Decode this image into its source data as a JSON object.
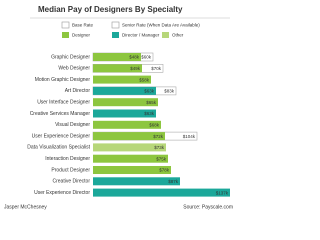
{
  "chart_data": {
    "type": "bar",
    "orientation": "horizontal",
    "title": "Median Pay of Designers By Specialty",
    "categories": [
      "Graphic Designer",
      "Web Designer",
      "Motion Graphic Designer",
      "Art Director",
      "User Interface Designer",
      "Creative Services Manager",
      "Visual Designer",
      "User Experience Designer",
      "Data Visualization Specialist",
      "Interaction Designer",
      "Product Designer",
      "Creative Director",
      "User Experience Director"
    ],
    "series": [
      {
        "name": "Base Rate",
        "values": [
          48,
          49,
          58,
          63,
          65,
          63,
          68,
          72,
          73,
          75,
          78,
          87,
          137
        ],
        "value_labels": [
          "$48k",
          "$49k",
          "$58k",
          "$63k",
          "$65k",
          "$63k",
          "$68k",
          "$72k",
          "$73k",
          "$75k",
          "$78k",
          "$87k",
          "$137k"
        ],
        "colors": [
          "#8dc63f",
          "#8dc63f",
          "#8dc63f",
          "#1ba89a",
          "#8dc63f",
          "#1ba89a",
          "#8dc63f",
          "#8dc63f",
          "#b7d77a",
          "#8dc63f",
          "#8dc63f",
          "#1ba89a",
          "#1ba89a"
        ]
      },
      {
        "name": "Senior Rate (When Data Are Available)",
        "values": [
          60,
          70,
          null,
          83,
          null,
          null,
          null,
          104,
          null,
          null,
          null,
          null,
          null
        ],
        "value_labels": [
          "$60k",
          "$70k",
          null,
          "$83k",
          null,
          null,
          null,
          "$104k",
          null,
          null,
          null,
          null,
          null
        ],
        "color": "#aaaaaa"
      }
    ],
    "color_legend": [
      {
        "name": "Designer",
        "color": "#8dc63f"
      },
      {
        "name": "Director / Manager",
        "color": "#1ba89a"
      },
      {
        "name": "Other",
        "color": "#b7d77a"
      }
    ],
    "xlim": [
      0,
      140
    ],
    "author": "Jasper McChesney",
    "source": "Source: Payscale.com"
  }
}
